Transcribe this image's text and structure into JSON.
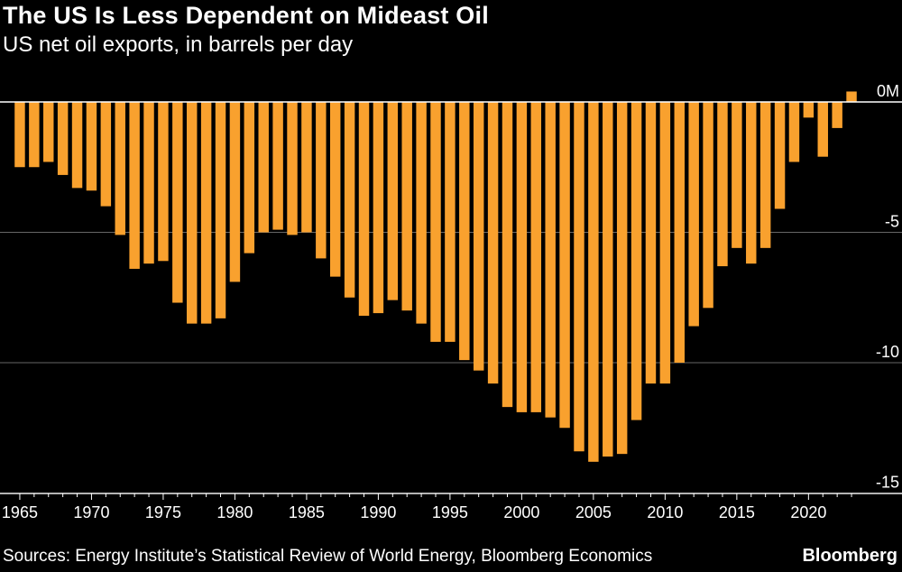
{
  "header": {
    "title": "The US Is Less Dependent on Mideast Oil",
    "subtitle": "US net oil exports, in barrels per day"
  },
  "footer": {
    "source": "Sources: Energy Institute’s Statistical Review of World Energy, Bloomberg Economics",
    "brand": "Bloomberg"
  },
  "colors": {
    "background": "#000000",
    "bar": "#f9a12e",
    "gridline": "#666666",
    "zeroline": "#ffffff",
    "text": "#ffffff"
  },
  "chart_data": {
    "type": "bar",
    "title": "The US Is Less Dependent on Mideast Oil",
    "subtitle": "US net oil exports, in barrels per day",
    "xlabel": "",
    "ylabel": "",
    "ylim": [
      -15,
      0.5
    ],
    "yticks": [
      {
        "value": 0,
        "label": "0M"
      },
      {
        "value": -5,
        "label": "-5"
      },
      {
        "value": -10,
        "label": "-10"
      },
      {
        "value": -15,
        "label": "-15"
      }
    ],
    "xticks": [
      "1965",
      "1970",
      "1975",
      "1980",
      "1985",
      "1990",
      "1995",
      "2000",
      "2005",
      "2010",
      "2015",
      "2020"
    ],
    "grid": true,
    "legend": "none",
    "categories": [
      1965,
      1966,
      1967,
      1968,
      1969,
      1970,
      1971,
      1972,
      1973,
      1974,
      1975,
      1976,
      1977,
      1978,
      1979,
      1980,
      1981,
      1982,
      1983,
      1984,
      1985,
      1986,
      1987,
      1988,
      1989,
      1990,
      1991,
      1992,
      1993,
      1994,
      1995,
      1996,
      1997,
      1998,
      1999,
      2000,
      2001,
      2002,
      2003,
      2004,
      2005,
      2006,
      2007,
      2008,
      2009,
      2010,
      2011,
      2012,
      2013,
      2014,
      2015,
      2016,
      2017,
      2018,
      2019,
      2020,
      2021,
      2022,
      2023
    ],
    "values": [
      -2.5,
      -2.5,
      -2.3,
      -2.8,
      -3.3,
      -3.4,
      -4.0,
      -5.1,
      -6.4,
      -6.2,
      -6.1,
      -7.7,
      -8.5,
      -8.5,
      -8.3,
      -6.9,
      -5.8,
      -5.0,
      -4.9,
      -5.1,
      -5.0,
      -6.0,
      -6.7,
      -7.5,
      -8.2,
      -8.1,
      -7.6,
      -8.0,
      -8.5,
      -9.2,
      -9.2,
      -9.9,
      -10.3,
      -10.8,
      -11.7,
      -11.9,
      -11.9,
      -12.1,
      -12.5,
      -13.4,
      -13.8,
      -13.6,
      -13.5,
      -12.2,
      -10.8,
      -10.8,
      -10.0,
      -8.6,
      -7.9,
      -6.3,
      -5.6,
      -6.2,
      -5.6,
      -4.1,
      -2.3,
      -0.6,
      -2.1,
      -1.0,
      0.4
    ]
  }
}
